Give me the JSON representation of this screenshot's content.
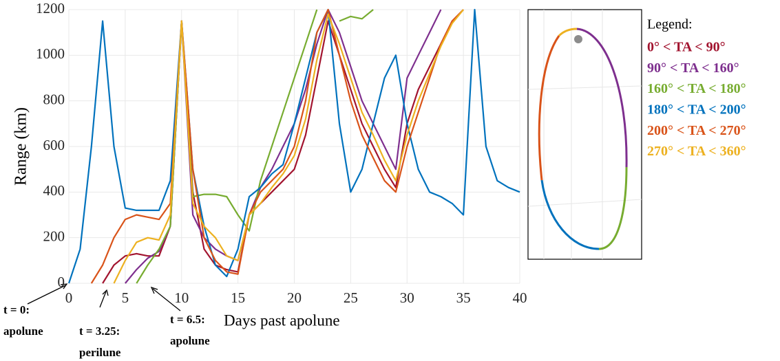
{
  "chart_data": {
    "type": "line",
    "ylabel": "Range (km)",
    "xlabel": "Days past apolune",
    "xlim": [
      0,
      40
    ],
    "ylim": [
      0,
      1200
    ],
    "xticks": [
      0,
      5,
      10,
      15,
      20,
      25,
      30,
      35,
      40
    ],
    "yticks": [
      0,
      200,
      400,
      600,
      800,
      1000,
      1200
    ],
    "grid": true,
    "legend_title": "Legend:",
    "annotations": [
      [
        "t = 0:",
        "apolune"
      ],
      [
        "t = 3.25:",
        "perilune"
      ],
      [
        "t = 6.5:",
        "apolune"
      ]
    ],
    "x": [
      0,
      1,
      2,
      3,
      4,
      5,
      6,
      7,
      8,
      9,
      10,
      11,
      12,
      13,
      14,
      15,
      16,
      17,
      18,
      19,
      20,
      21,
      22,
      23,
      24,
      25,
      26,
      27,
      28,
      29,
      30,
      31,
      32,
      33,
      34,
      35,
      36,
      37,
      38,
      39,
      40
    ],
    "series": [
      {
        "name": "0° < TA < 90°",
        "color": "#a2142f",
        "values": [
          null,
          null,
          null,
          0,
          80,
          120,
          130,
          120,
          120,
          250,
          1150,
          400,
          150,
          80,
          60,
          50,
          300,
          350,
          400,
          450,
          500,
          650,
          900,
          1150,
          1000,
          850,
          700,
          600,
          500,
          420,
          700,
          850,
          950,
          1050,
          1150,
          1200,
          null,
          null,
          null,
          null,
          null
        ]
      },
      {
        "name": "90° < TA < 160°",
        "color": "#7e2f8e",
        "values": [
          null,
          null,
          null,
          null,
          null,
          0,
          60,
          110,
          140,
          250,
          1150,
          300,
          200,
          150,
          120,
          100,
          300,
          420,
          500,
          600,
          700,
          850,
          1050,
          1200,
          1100,
          950,
          800,
          700,
          600,
          500,
          900,
          1000,
          1100,
          1200,
          null,
          null,
          null,
          null,
          null,
          null,
          null
        ]
      },
      {
        "name": "160° < TA < 180°",
        "color": "#77ac30",
        "values": [
          null,
          null,
          null,
          null,
          null,
          null,
          0,
          80,
          150,
          250,
          1150,
          380,
          390,
          390,
          380,
          300,
          230,
          450,
          600,
          750,
          900,
          1050,
          1200,
          null,
          1150,
          1170,
          1160,
          1200,
          null,
          null,
          null,
          null,
          null,
          null,
          null,
          null,
          null,
          null,
          null,
          null,
          null
        ]
      },
      {
        "name": "180° < TA < 200°",
        "color": "#0072bd",
        "values": [
          0,
          150,
          600,
          1150,
          600,
          330,
          320,
          320,
          320,
          450,
          1150,
          500,
          250,
          80,
          30,
          150,
          380,
          420,
          480,
          520,
          700,
          900,
          1100,
          1200,
          700,
          400,
          500,
          700,
          900,
          1000,
          700,
          500,
          400,
          380,
          350,
          300,
          1200,
          600,
          450,
          420,
          400
        ]
      },
      {
        "name": "200° < TA < 270°",
        "color": "#d95319",
        "values": [
          null,
          null,
          0,
          80,
          200,
          280,
          300,
          290,
          280,
          350,
          1150,
          500,
          200,
          100,
          50,
          40,
          300,
          400,
          450,
          500,
          600,
          800,
          1100,
          1200,
          1000,
          800,
          650,
          550,
          450,
          400,
          600,
          750,
          900,
          1050,
          1150,
          1200,
          null,
          null,
          null,
          null,
          null
        ]
      },
      {
        "name": "270° < TA < 360°",
        "color": "#edb120",
        "values": [
          null,
          null,
          null,
          null,
          0,
          100,
          180,
          200,
          190,
          300,
          1150,
          350,
          250,
          200,
          120,
          100,
          300,
          350,
          420,
          480,
          560,
          720,
          980,
          1180,
          1050,
          900,
          750,
          650,
          540,
          450,
          650,
          800,
          920,
          1040,
          1140,
          1200,
          null,
          null,
          null,
          null,
          null
        ]
      }
    ]
  }
}
